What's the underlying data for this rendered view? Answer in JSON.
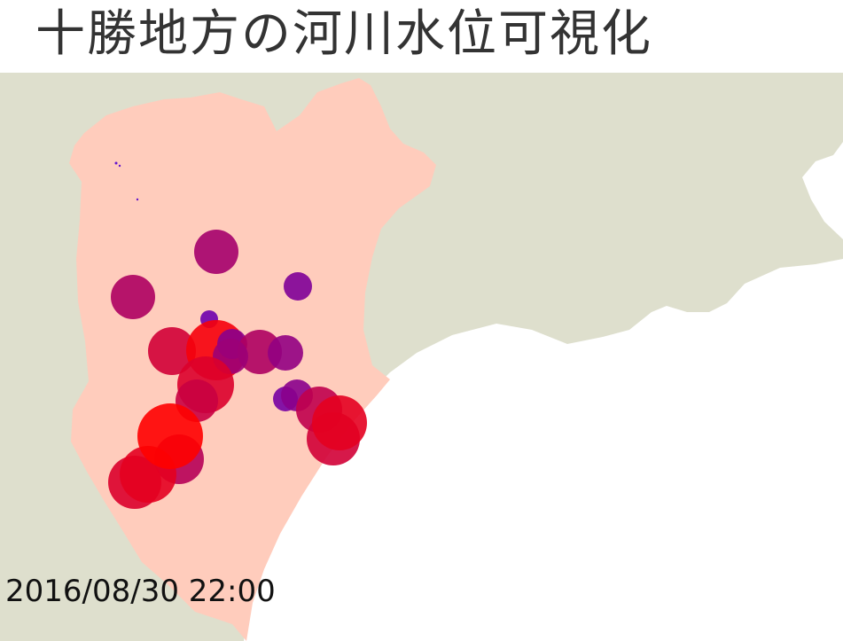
{
  "title": "十勝地方の河川水位可視化",
  "timestamp": "2016/08/30 22:00",
  "colors": {
    "land": "#dedfcd",
    "sea": "#ffffff",
    "region": "#ffccbc",
    "level_low": "#4a00d8",
    "level_high": "#ff0000"
  },
  "stations": [
    {
      "level": 0.05
    },
    {
      "level": 0.05
    },
    {
      "level": 0.05
    },
    {
      "level": 0.5
    },
    {
      "level": 0.55
    },
    {
      "level": 0.3
    },
    {
      "level": 0.2
    },
    {
      "level": 0.75
    },
    {
      "level": 0.95
    },
    {
      "level": 0.35
    },
    {
      "level": 0.55
    },
    {
      "level": 0.45
    },
    {
      "level": 0.4
    },
    {
      "level": 0.8
    },
    {
      "level": 0.7
    },
    {
      "level": 0.25
    },
    {
      "level": 0.35
    },
    {
      "level": 0.65
    },
    {
      "level": 0.75
    },
    {
      "level": 0.85
    },
    {
      "level": 0.6
    },
    {
      "level": 0.8
    },
    {
      "level": 0.85
    },
    {
      "level": 1.0
    }
  ]
}
